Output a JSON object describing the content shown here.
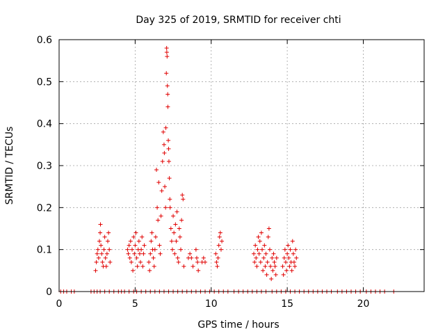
{
  "chart_data": {
    "type": "scatter",
    "title": "Day 325 of 2019, SRMTID for receiver chti",
    "xlabel": "GPS time / hours",
    "ylabel": "SRMTID / TECUs",
    "xlim": [
      0,
      24
    ],
    "ylim": [
      0,
      0.6
    ],
    "xticks": [
      0,
      5,
      10,
      15,
      20
    ],
    "xtick_labels": [
      "0",
      "5",
      "10",
      "15",
      "20"
    ],
    "yticks": [
      0,
      0.1,
      0.2,
      0.3,
      0.4,
      0.5,
      0.6
    ],
    "ytick_labels": [
      "0",
      "0.1",
      "0.2",
      "0.3",
      "0.4",
      "0.5",
      "0.6"
    ],
    "grid": true,
    "marker": "+",
    "series": [
      {
        "name": "SRMTID",
        "color": "#e00000",
        "points": [
          [
            0.1,
            0
          ],
          [
            0.3,
            0
          ],
          [
            0.5,
            0
          ],
          [
            0.8,
            0
          ],
          [
            1.0,
            0
          ],
          [
            2.1,
            0
          ],
          [
            2.3,
            0
          ],
          [
            2.5,
            0
          ],
          [
            2.7,
            0
          ],
          [
            3.0,
            0
          ],
          [
            3.3,
            0
          ],
          [
            3.6,
            0
          ],
          [
            3.9,
            0
          ],
          [
            4.1,
            0
          ],
          [
            4.3,
            0
          ],
          [
            4.6,
            0
          ],
          [
            4.9,
            0
          ],
          [
            5.1,
            0
          ],
          [
            5.4,
            0
          ],
          [
            5.7,
            0
          ],
          [
            6.0,
            0
          ],
          [
            6.3,
            0
          ],
          [
            6.6,
            0
          ],
          [
            6.9,
            0
          ],
          [
            7.2,
            0
          ],
          [
            7.5,
            0
          ],
          [
            7.8,
            0
          ],
          [
            8.1,
            0
          ],
          [
            8.4,
            0
          ],
          [
            8.7,
            0
          ],
          [
            9.0,
            0
          ],
          [
            9.3,
            0
          ],
          [
            9.6,
            0
          ],
          [
            9.9,
            0
          ],
          [
            10.2,
            0
          ],
          [
            10.5,
            0
          ],
          [
            10.8,
            0
          ],
          [
            11.1,
            0
          ],
          [
            11.5,
            0
          ],
          [
            11.8,
            0
          ],
          [
            12.1,
            0
          ],
          [
            12.4,
            0
          ],
          [
            12.7,
            0
          ],
          [
            13.0,
            0
          ],
          [
            13.3,
            0
          ],
          [
            13.6,
            0
          ],
          [
            14.0,
            0
          ],
          [
            14.3,
            0
          ],
          [
            14.6,
            0
          ],
          [
            14.9,
            0
          ],
          [
            15.2,
            0
          ],
          [
            15.5,
            0
          ],
          [
            15.8,
            0
          ],
          [
            16.1,
            0
          ],
          [
            16.4,
            0
          ],
          [
            16.7,
            0
          ],
          [
            17.0,
            0
          ],
          [
            17.3,
            0
          ],
          [
            17.6,
            0
          ],
          [
            17.9,
            0
          ],
          [
            18.3,
            0
          ],
          [
            18.6,
            0
          ],
          [
            18.9,
            0
          ],
          [
            19.2,
            0
          ],
          [
            19.5,
            0
          ],
          [
            19.8,
            0
          ],
          [
            20.2,
            0
          ],
          [
            20.5,
            0
          ],
          [
            20.8,
            0
          ],
          [
            21.1,
            0
          ],
          [
            21.4,
            0
          ],
          [
            22.0,
            0
          ],
          [
            2.4,
            0.05
          ],
          [
            2.45,
            0.07
          ],
          [
            2.5,
            0.09
          ],
          [
            2.55,
            0.1
          ],
          [
            2.6,
            0.08
          ],
          [
            2.65,
            0.12
          ],
          [
            2.7,
            0.14
          ],
          [
            2.72,
            0.16
          ],
          [
            2.75,
            0.11
          ],
          [
            2.8,
            0.09
          ],
          [
            2.85,
            0.07
          ],
          [
            2.9,
            0.06
          ],
          [
            2.95,
            0.1
          ],
          [
            3.0,
            0.13
          ],
          [
            3.05,
            0.08
          ],
          [
            3.1,
            0.06
          ],
          [
            3.15,
            0.09
          ],
          [
            3.2,
            0.12
          ],
          [
            3.25,
            0.14
          ],
          [
            3.3,
            0.1
          ],
          [
            3.35,
            0.07
          ],
          [
            4.5,
            0.1
          ],
          [
            4.55,
            0.09
          ],
          [
            4.6,
            0.11
          ],
          [
            4.65,
            0.08
          ],
          [
            4.7,
            0.12
          ],
          [
            4.75,
            0.07
          ],
          [
            4.8,
            0.1
          ],
          [
            4.85,
            0.05
          ],
          [
            4.9,
            0.13
          ],
          [
            4.95,
            0.09
          ],
          [
            5.0,
            0.11
          ],
          [
            5.05,
            0.14
          ],
          [
            5.1,
            0.08
          ],
          [
            5.15,
            0.06
          ],
          [
            5.2,
            0.1
          ],
          [
            5.25,
            0.12
          ],
          [
            5.3,
            0.09
          ],
          [
            5.35,
            0.07
          ],
          [
            5.4,
            0.1
          ],
          [
            5.45,
            0.13
          ],
          [
            5.5,
            0.06
          ],
          [
            5.55,
            0.09
          ],
          [
            5.6,
            0.11
          ],
          [
            5.9,
            0.07
          ],
          [
            5.95,
            0.05
          ],
          [
            6.0,
            0.09
          ],
          [
            6.05,
            0.12
          ],
          [
            6.1,
            0.14
          ],
          [
            6.15,
            0.1
          ],
          [
            6.2,
            0.08
          ],
          [
            6.25,
            0.06
          ],
          [
            6.3,
            0.1
          ],
          [
            6.35,
            0.13
          ],
          [
            6.4,
            0.29
          ],
          [
            6.45,
            0.2
          ],
          [
            6.5,
            0.17
          ],
          [
            6.55,
            0.26
          ],
          [
            6.6,
            0.11
          ],
          [
            6.65,
            0.09
          ],
          [
            6.7,
            0.18
          ],
          [
            6.75,
            0.24
          ],
          [
            6.8,
            0.31
          ],
          [
            6.85,
            0.38
          ],
          [
            6.9,
            0.35
          ],
          [
            6.92,
            0.33
          ],
          [
            6.95,
            0.25
          ],
          [
            7.0,
            0.2
          ],
          [
            7.02,
            0.39
          ],
          [
            7.05,
            0.52
          ],
          [
            7.07,
            0.58
          ],
          [
            7.08,
            0.57
          ],
          [
            7.1,
            0.56
          ],
          [
            7.12,
            0.49
          ],
          [
            7.14,
            0.47
          ],
          [
            7.15,
            0.44
          ],
          [
            7.18,
            0.36
          ],
          [
            7.2,
            0.34
          ],
          [
            7.22,
            0.31
          ],
          [
            7.25,
            0.27
          ],
          [
            7.28,
            0.22
          ],
          [
            7.3,
            0.2
          ],
          [
            7.35,
            0.15
          ],
          [
            7.4,
            0.12
          ],
          [
            7.45,
            0.1
          ],
          [
            7.5,
            0.18
          ],
          [
            7.55,
            0.14
          ],
          [
            7.6,
            0.09
          ],
          [
            7.65,
            0.16
          ],
          [
            7.7,
            0.12
          ],
          [
            7.75,
            0.19
          ],
          [
            7.8,
            0.08
          ],
          [
            7.85,
            0.07
          ],
          [
            7.9,
            0.15
          ],
          [
            7.95,
            0.13
          ],
          [
            8.0,
            0.1
          ],
          [
            8.05,
            0.17
          ],
          [
            8.1,
            0.23
          ],
          [
            8.15,
            0.22
          ],
          [
            8.2,
            0.06
          ],
          [
            8.5,
            0.08
          ],
          [
            8.6,
            0.09
          ],
          [
            8.7,
            0.08
          ],
          [
            8.8,
            0.06
          ],
          [
            9.0,
            0.1
          ],
          [
            9.05,
            0.08
          ],
          [
            9.1,
            0.07
          ],
          [
            9.15,
            0.05
          ],
          [
            9.4,
            0.07
          ],
          [
            9.5,
            0.08
          ],
          [
            9.6,
            0.07
          ],
          [
            10.3,
            0.09
          ],
          [
            10.35,
            0.07
          ],
          [
            10.4,
            0.06
          ],
          [
            10.45,
            0.08
          ],
          [
            10.5,
            0.11
          ],
          [
            10.55,
            0.13
          ],
          [
            10.6,
            0.14
          ],
          [
            10.65,
            0.1
          ],
          [
            10.7,
            0.12
          ],
          [
            12.8,
            0.09
          ],
          [
            12.85,
            0.07
          ],
          [
            12.9,
            0.11
          ],
          [
            12.95,
            0.08
          ],
          [
            13.0,
            0.06
          ],
          [
            13.05,
            0.1
          ],
          [
            13.1,
            0.13
          ],
          [
            13.15,
            0.09
          ],
          [
            13.2,
            0.12
          ],
          [
            13.25,
            0.07
          ],
          [
            13.3,
            0.14
          ],
          [
            13.35,
            0.1
          ],
          [
            13.4,
            0.05
          ],
          [
            13.45,
            0.08
          ],
          [
            13.5,
            0.11
          ],
          [
            13.55,
            0.06
          ],
          [
            13.6,
            0.09
          ],
          [
            13.65,
            0.04
          ],
          [
            13.7,
            0.07
          ],
          [
            13.75,
            0.13
          ],
          [
            13.8,
            0.15
          ],
          [
            13.85,
            0.1
          ],
          [
            13.9,
            0.06
          ],
          [
            13.95,
            0.03
          ],
          [
            14.0,
            0.08
          ],
          [
            14.05,
            0.05
          ],
          [
            14.1,
            0.09
          ],
          [
            14.15,
            0.07
          ],
          [
            14.2,
            0.06
          ],
          [
            14.25,
            0.04
          ],
          [
            14.3,
            0.08
          ],
          [
            14.7,
            0.06
          ],
          [
            14.75,
            0.04
          ],
          [
            14.8,
            0.08
          ],
          [
            14.85,
            0.1
          ],
          [
            14.9,
            0.07
          ],
          [
            14.95,
            0.05
          ],
          [
            15.0,
            0.09
          ],
          [
            15.05,
            0.11
          ],
          [
            15.1,
            0.08
          ],
          [
            15.15,
            0.06
          ],
          [
            15.2,
            0.1
          ],
          [
            15.25,
            0.07
          ],
          [
            15.3,
            0.05
          ],
          [
            15.35,
            0.12
          ],
          [
            15.4,
            0.09
          ],
          [
            15.45,
            0.07
          ],
          [
            15.5,
            0.06
          ],
          [
            15.55,
            0.1
          ],
          [
            15.6,
            0.08
          ]
        ]
      }
    ]
  }
}
